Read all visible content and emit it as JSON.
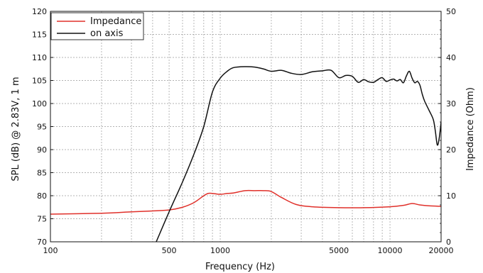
{
  "chart_data": {
    "type": "line",
    "xlabel": "Frequency (Hz)",
    "ylabel": "SPL (dB) @ 2.83V, 1 m",
    "y2label": "Impedance (Ohm)",
    "x_scale": "log",
    "xlim": [
      100,
      20000
    ],
    "ylim": [
      70,
      120
    ],
    "y2lim": [
      0,
      50
    ],
    "x_tick_labels": [
      {
        "value": 100,
        "label": "100"
      },
      {
        "value": 500,
        "label": "500"
      },
      {
        "value": 1000,
        "label": "1000"
      },
      {
        "value": 5000,
        "label": "5000"
      },
      {
        "value": 10000,
        "label": "10000"
      },
      {
        "value": 20000,
        "label": "20000"
      }
    ],
    "y_ticks": [
      70,
      75,
      80,
      85,
      90,
      95,
      100,
      105,
      110,
      115,
      120
    ],
    "y2_ticks": [
      0,
      10,
      20,
      30,
      40,
      50
    ],
    "grid": true,
    "legend_position": "top-left",
    "series": [
      {
        "name": "Impedance",
        "axis": "right",
        "color": "#e0302a",
        "x": [
          100,
          200,
          300,
          400,
          500,
          600,
          700,
          800,
          850,
          900,
          1000,
          1100,
          1200,
          1400,
          1600,
          1800,
          2000,
          2300,
          2800,
          3500,
          5000,
          7000,
          10000,
          12000,
          13500,
          15000,
          17000,
          20000
        ],
        "y": [
          6.0,
          6.2,
          6.5,
          6.7,
          6.9,
          7.5,
          8.5,
          10.0,
          10.5,
          10.5,
          10.3,
          10.5,
          10.6,
          11.1,
          11.1,
          11.1,
          10.9,
          9.6,
          8.1,
          7.6,
          7.4,
          7.4,
          7.6,
          7.9,
          8.3,
          8.0,
          7.8,
          7.7
        ]
      },
      {
        "name": "on axis",
        "axis": "left",
        "color": "#111111",
        "x": [
          420,
          500,
          600,
          700,
          800,
          900,
          1000,
          1100,
          1200,
          1400,
          1600,
          1800,
          2000,
          2300,
          2600,
          3000,
          3500,
          4000,
          4500,
          5000,
          5500,
          6000,
          6500,
          7000,
          7500,
          8000,
          8500,
          9000,
          9500,
          10000,
          10500,
          11000,
          11500,
          12000,
          12500,
          13000,
          13500,
          14000,
          14500,
          15000,
          15500,
          16000,
          17000,
          18000,
          18500,
          19000,
          19500,
          20000
        ],
        "y": [
          70,
          76.5,
          83,
          89,
          95,
          102.5,
          105.5,
          107,
          107.8,
          108,
          107.9,
          107.5,
          107,
          107.2,
          106.6,
          106.3,
          106.9,
          107.1,
          107.2,
          105.6,
          106.1,
          105.9,
          104.6,
          105.2,
          104.7,
          104.6,
          105.2,
          105.6,
          104.8,
          105.1,
          105.3,
          104.9,
          105.2,
          104.5,
          106.0,
          107.0,
          105.5,
          104.5,
          104.8,
          104.0,
          102.0,
          100.5,
          98.5,
          96.5,
          94.0,
          91.0,
          92.5,
          96.0
        ]
      }
    ]
  }
}
